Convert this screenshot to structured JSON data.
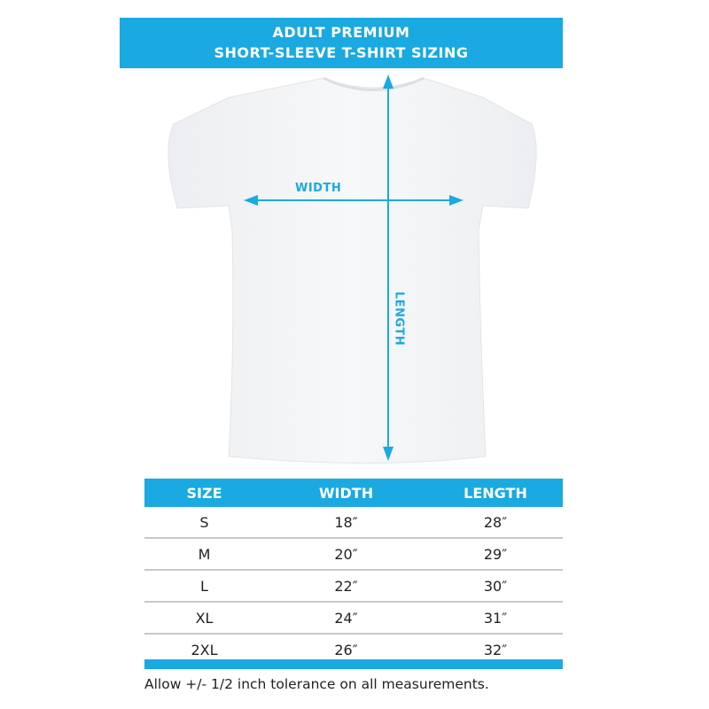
{
  "banner": {
    "line1": "ADULT PREMIUM",
    "line2": "SHORT-SLEEVE T-SHIRT SIZING"
  },
  "diagram": {
    "width_label": "WIDTH",
    "length_label": "LENGTH"
  },
  "table": {
    "headers": [
      "SIZE",
      "WIDTH",
      "LENGTH"
    ],
    "rows": [
      [
        "S",
        "18″",
        "28″"
      ],
      [
        "M",
        "20″",
        "29″"
      ],
      [
        "L",
        "22″",
        "30″"
      ],
      [
        "XL",
        "24″",
        "31″"
      ],
      [
        "2XL",
        "26″",
        "32″"
      ]
    ]
  },
  "footer": {
    "note": "Allow +/- 1/2 inch tolerance on all measurements."
  },
  "colors": {
    "accent": "#1aa9e0",
    "shirt": "#f3f4f6"
  }
}
